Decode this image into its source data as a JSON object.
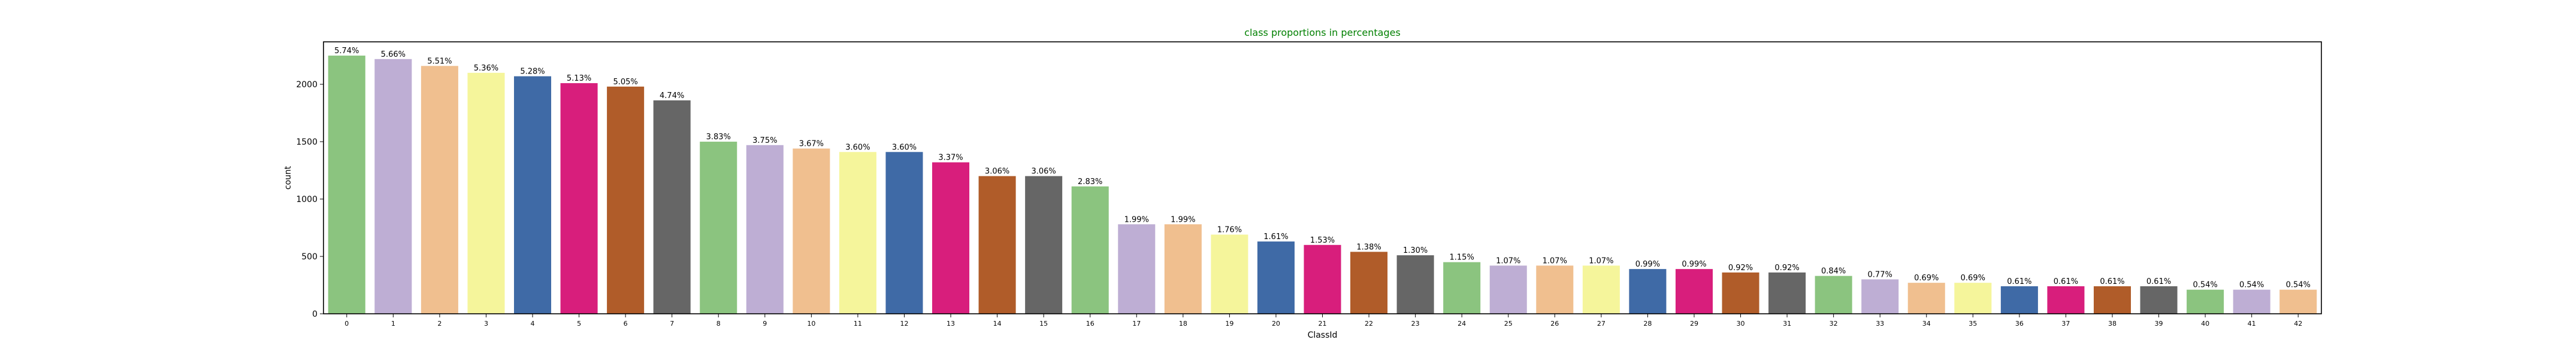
{
  "chart_data": {
    "type": "bar",
    "title": "class proportions in percentages",
    "xlabel": "ClassId",
    "ylabel": "count",
    "ylim": [
      0,
      2370
    ],
    "yticks": [
      0,
      500,
      1000,
      1500,
      2000
    ],
    "grid": false,
    "categories": [
      "0",
      "1",
      "2",
      "3",
      "4",
      "5",
      "6",
      "7",
      "8",
      "9",
      "10",
      "11",
      "12",
      "13",
      "14",
      "15",
      "16",
      "17",
      "18",
      "19",
      "20",
      "21",
      "22",
      "23",
      "24",
      "25",
      "26",
      "27",
      "28",
      "29",
      "30",
      "31",
      "32",
      "33",
      "34",
      "35",
      "36",
      "37",
      "38",
      "39",
      "40",
      "41",
      "42"
    ],
    "values": [
      2250,
      2220,
      2160,
      2100,
      2070,
      2010,
      1980,
      1860,
      1500,
      1470,
      1440,
      1410,
      1410,
      1320,
      1200,
      1200,
      1110,
      780,
      780,
      690,
      630,
      600,
      540,
      510,
      450,
      420,
      420,
      420,
      390,
      390,
      360,
      360,
      330,
      300,
      270,
      270,
      240,
      240,
      240,
      240,
      210,
      210,
      210
    ],
    "labels": [
      "5.74%",
      "5.66%",
      "5.51%",
      "5.36%",
      "5.28%",
      "5.13%",
      "5.05%",
      "4.74%",
      "3.83%",
      "3.75%",
      "3.67%",
      "3.60%",
      "3.60%",
      "3.37%",
      "3.06%",
      "3.06%",
      "2.83%",
      "1.99%",
      "1.99%",
      "1.76%",
      "1.61%",
      "1.53%",
      "1.38%",
      "1.30%",
      "1.15%",
      "1.07%",
      "1.07%",
      "1.07%",
      "0.99%",
      "0.99%",
      "0.92%",
      "0.92%",
      "0.84%",
      "0.77%",
      "0.69%",
      "0.69%",
      "0.61%",
      "0.61%",
      "0.61%",
      "0.61%",
      "0.54%",
      "0.54%",
      "0.54%"
    ],
    "palette": [
      "#8bc47f",
      "#beaed4",
      "#f0bf8f",
      "#f5f59b",
      "#3f6aa6",
      "#d81e7c",
      "#b05c29",
      "#666666"
    ],
    "title_color": "#008000"
  }
}
